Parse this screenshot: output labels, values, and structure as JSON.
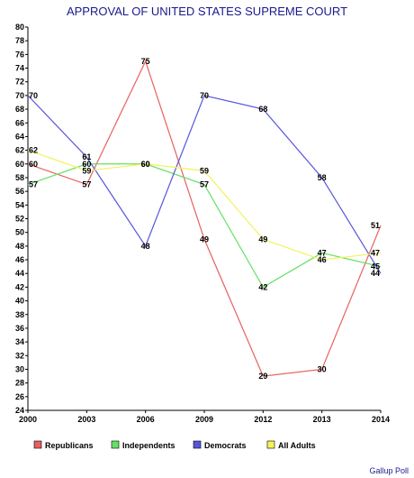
{
  "chart_data": {
    "type": "line",
    "title": "APPROVAL OF UNITED STATES SUPREME COURT",
    "xlabel": "",
    "ylabel": "",
    "categories": [
      "2000",
      "2003",
      "2006",
      "2009",
      "2012",
      "2013",
      "2014"
    ],
    "ylim": [
      24,
      80
    ],
    "ytick_step": 2,
    "grid": false,
    "legend_position": "bottom",
    "series": [
      {
        "name": "Republicans",
        "color": "#e86060",
        "values": [
          60,
          57,
          75,
          49,
          29,
          30,
          51
        ]
      },
      {
        "name": "Independents",
        "color": "#66e066",
        "values": [
          57,
          60,
          60,
          57,
          42,
          47,
          45
        ]
      },
      {
        "name": "Democrats",
        "color": "#5555dd",
        "values": [
          70,
          61,
          48,
          70,
          68,
          58,
          44
        ]
      },
      {
        "name": "All Adults",
        "color": "#f2f25a",
        "values": [
          62,
          59,
          60,
          59,
          49,
          46,
          47
        ]
      }
    ],
    "source": "Gallup Poll"
  }
}
